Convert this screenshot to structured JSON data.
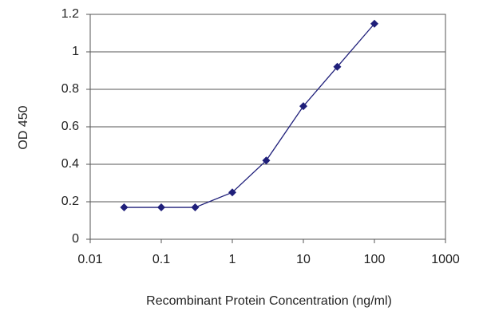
{
  "chart_data": {
    "type": "line",
    "x_label": "Recombinant Protein Concentration (ng/ml)",
    "y_label": "OD 450",
    "x": [
      0.03,
      0.1,
      0.3,
      1,
      3,
      10,
      30,
      100
    ],
    "series": [
      {
        "color": "#1f1f7a",
        "values": [
          0.17,
          0.17,
          0.17,
          0.25,
          0.42,
          0.71,
          0.92,
          1.15
        ]
      }
    ],
    "xscale": "log",
    "xlim": [
      0.01,
      1000
    ],
    "xticks": [
      0.01,
      0.1,
      1,
      10,
      100,
      1000
    ],
    "ylim": [
      0,
      1.2
    ],
    "yticks": [
      0,
      0.2,
      0.4,
      0.6,
      0.8,
      1,
      1.2
    ],
    "grid": "y"
  }
}
